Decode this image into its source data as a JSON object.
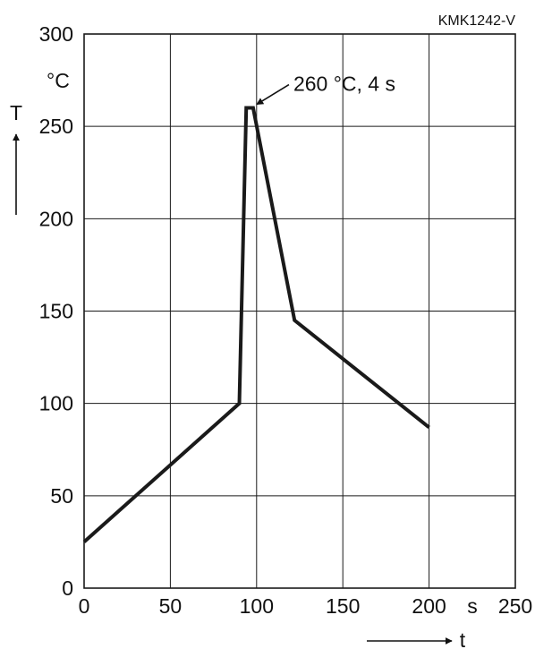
{
  "figure_code": "KMK1242-V",
  "chart_data": {
    "type": "line",
    "xlabel": "t",
    "ylabel": "T",
    "x_unit": "s",
    "y_unit": "°C",
    "xlim": [
      0,
      250
    ],
    "ylim": [
      0,
      300
    ],
    "x_ticks": [
      0,
      50,
      100,
      150,
      200,
      250
    ],
    "y_ticks": [
      0,
      50,
      100,
      150,
      200,
      250,
      300
    ],
    "grid": true,
    "series": [
      {
        "x": [
          0,
          90,
          94,
          98,
          122,
          200
        ],
        "y": [
          25,
          100,
          260,
          260,
          145,
          87
        ]
      }
    ],
    "annotation": {
      "text": "260 °C, 4 s",
      "x": 98,
      "y": 260
    }
  }
}
